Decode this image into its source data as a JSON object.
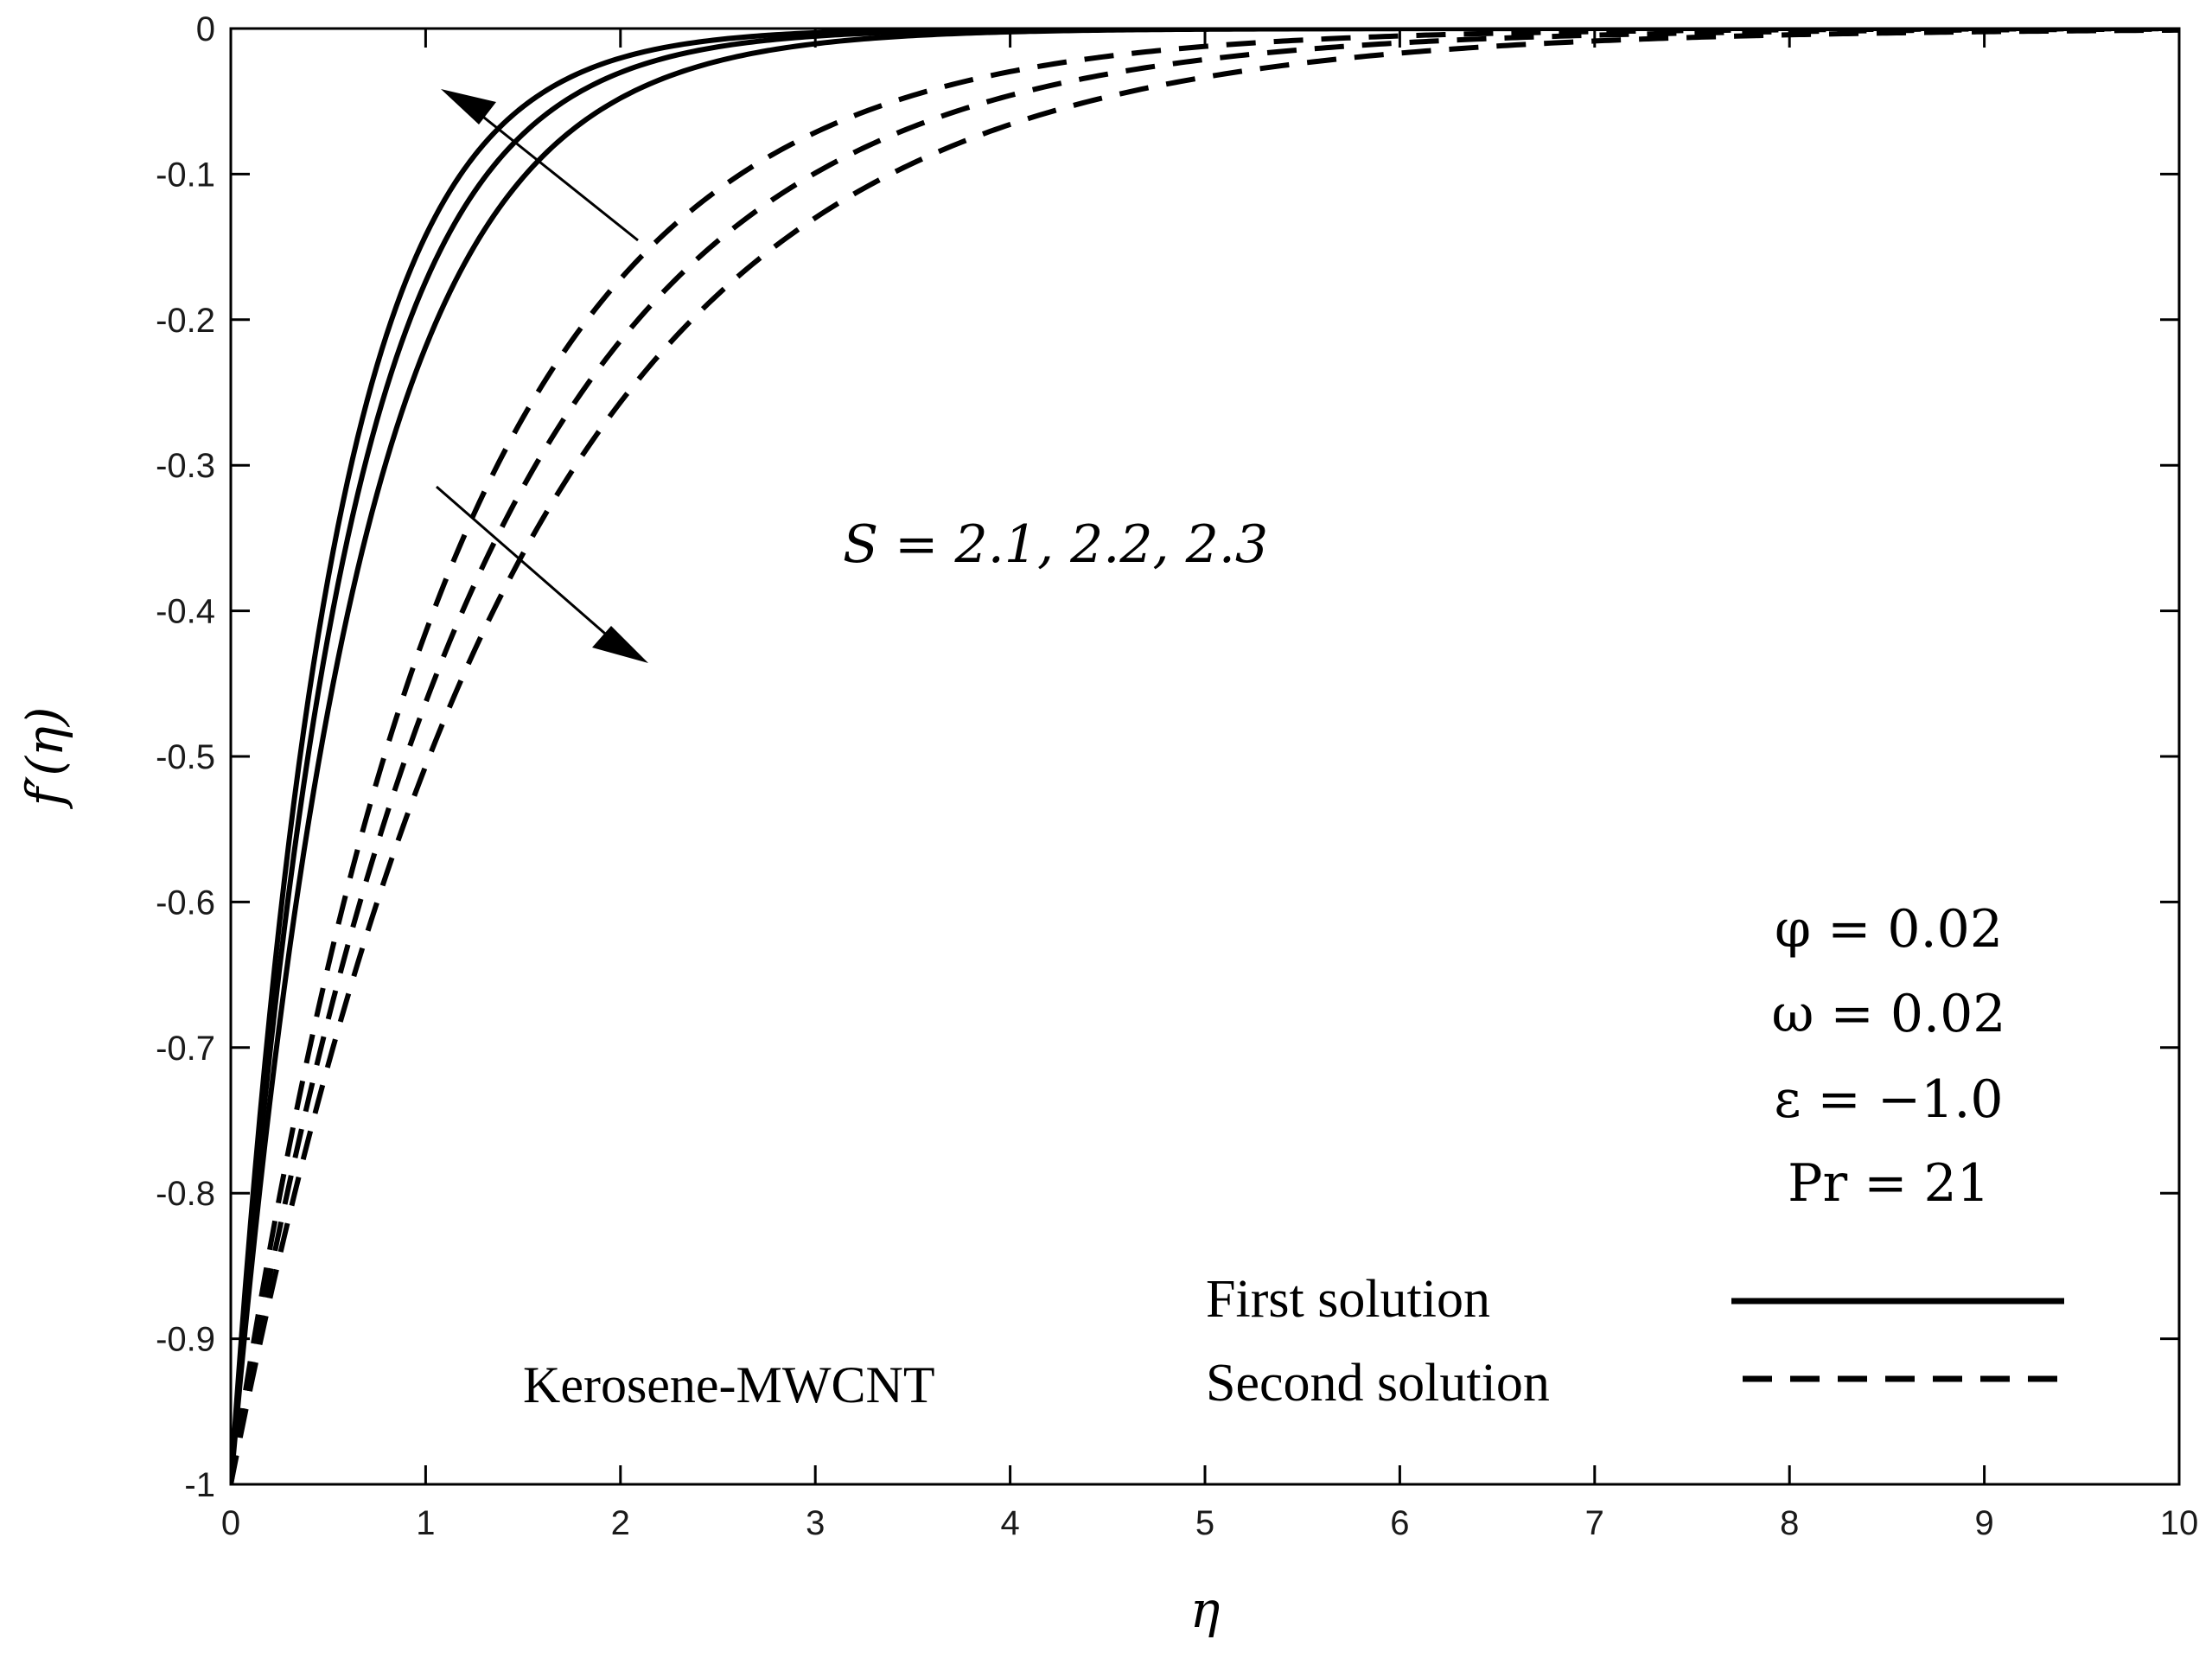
{
  "chart_data": {
    "type": "line",
    "xlabel": "η",
    "ylabel": "f′(η)",
    "xlim": [
      0,
      10
    ],
    "ylim": [
      -1,
      0
    ],
    "xticks": [
      "0",
      "1",
      "2",
      "3",
      "4",
      "5",
      "6",
      "7",
      "8",
      "9",
      "10"
    ],
    "yticks": [
      "0",
      "-0.1",
      "-0.2",
      "-0.3",
      "-0.4",
      "-0.5",
      "-0.6",
      "-0.7",
      "-0.8",
      "-0.9",
      "-1"
    ],
    "grid": false,
    "series": [
      {
        "name": "First solution, S = 2.1",
        "style": "solid",
        "decay_rate": 1.95
      },
      {
        "name": "First solution, S = 2.2",
        "style": "solid",
        "decay_rate": 1.75
      },
      {
        "name": "First solution, S = 2.3",
        "style": "solid",
        "decay_rate": 1.52
      },
      {
        "name": "Second solution, S = 2.1",
        "style": "dashed",
        "decay_rate": 0.88
      },
      {
        "name": "Second solution, S = 2.2",
        "style": "dashed",
        "decay_rate": 0.77
      },
      {
        "name": "Second solution, S = 2.3",
        "style": "dashed",
        "decay_rate": 0.68
      }
    ],
    "curve_model": "f'(η) = -exp(-decay_rate · η)",
    "annotations": {
      "s_label": "S = 2.1, 2.2, 2.3",
      "params": [
        "φ = 0.02",
        "ω = 0.02",
        "ε = −1.0",
        "Pr = 21"
      ],
      "fluid": "Kerosene-MWCNT"
    },
    "legend": {
      "placement": "bottom-right",
      "items": [
        {
          "label": "First solution",
          "style": "solid"
        },
        {
          "label": "Second solution",
          "style": "dashed"
        }
      ]
    },
    "line_color": "#000000"
  }
}
